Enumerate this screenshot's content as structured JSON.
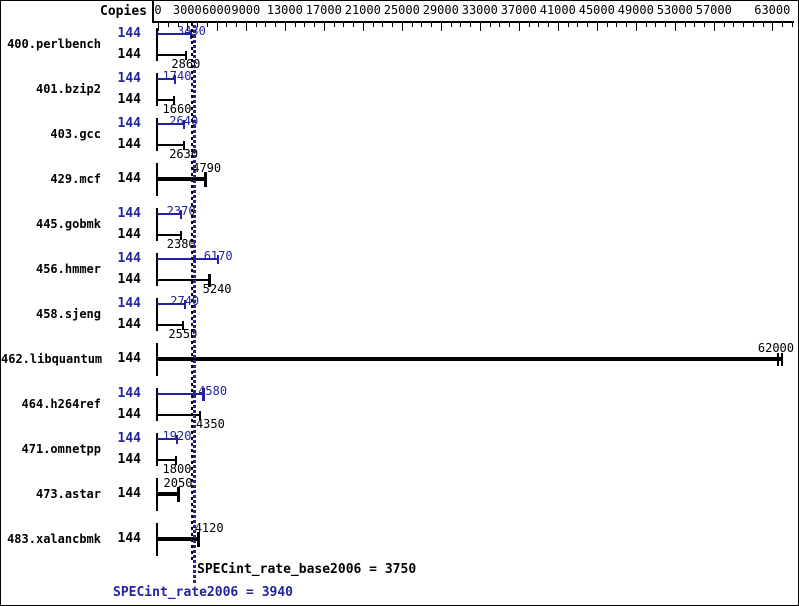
{
  "copies_header": "Copies",
  "footer": {
    "base_text": "SPECint_rate_base2006 = 3750",
    "peak_text": "SPECint_rate2006 = 3940"
  },
  "colors": {
    "peak_blue": "#2323a0",
    "base_black": "#000000",
    "background": "#ffffff"
  },
  "chart_data": {
    "type": "bar",
    "orientation": "horizontal",
    "title": "",
    "xlabel": "",
    "ylabel": "Copies",
    "x_axis": {
      "min": 0,
      "max": 65000,
      "minor_tick_step": 1000,
      "labeled_ticks": [
        0,
        3000,
        6000,
        9000,
        13000,
        17000,
        21000,
        25000,
        29000,
        33000,
        37000,
        41000,
        45000,
        49000,
        53000,
        57000,
        63000
      ]
    },
    "legend": {
      "peak_color_meaning": "peak (SPECint_rate2006)",
      "base_color_meaning": "base (SPECint_rate_base2006)"
    },
    "benchmarks": [
      {
        "name": "400.perlbench",
        "copies": 144,
        "peak": 3430,
        "base": 2860
      },
      {
        "name": "401.bzip2",
        "copies": 144,
        "peak": 1740,
        "base": 1660
      },
      {
        "name": "403.gcc",
        "copies": 144,
        "peak": 2640,
        "base": 2630
      },
      {
        "name": "429.mcf",
        "copies": 144,
        "single": 4790
      },
      {
        "name": "445.gobmk",
        "copies": 144,
        "peak": 2370,
        "base": 2380
      },
      {
        "name": "456.hmmer",
        "copies": 144,
        "peak": 6170,
        "base": 5240
      },
      {
        "name": "458.sjeng",
        "copies": 144,
        "peak": 2740,
        "base": 2550
      },
      {
        "name": "462.libquantum",
        "copies": 144,
        "single": 62000,
        "clipped": true
      },
      {
        "name": "464.h264ref",
        "copies": 144,
        "peak": 4580,
        "base": 4350
      },
      {
        "name": "471.omnetpp",
        "copies": 144,
        "peak": 1920,
        "base": 1800
      },
      {
        "name": "473.astar",
        "copies": 144,
        "single": 2050
      },
      {
        "name": "483.xalancbmk",
        "copies": 144,
        "single": 4120
      }
    ],
    "reference_lines": [
      {
        "metric": "SPECint_rate_base2006",
        "value": 3750,
        "style": "dashed",
        "color": "#000000"
      },
      {
        "metric": "SPECint_rate2006",
        "value": 3940,
        "style": "dotted",
        "color": "#2323a0"
      }
    ]
  }
}
